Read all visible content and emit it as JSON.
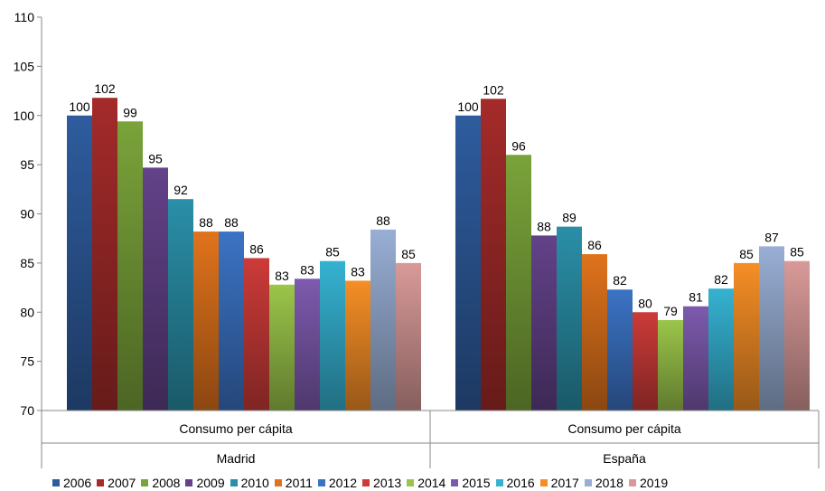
{
  "chart_data": {
    "type": "bar",
    "title": "",
    "xlabel": "",
    "ylabel": "",
    "ylim": [
      70,
      110
    ],
    "yticks": [
      "70",
      "75",
      "80",
      "85",
      "90",
      "95",
      "100",
      "105",
      "110"
    ],
    "grid": false,
    "legend_position": "bottom",
    "groups": [
      {
        "region": "Madrid",
        "category": "Consumo per cápita"
      },
      {
        "region": "España",
        "category": "Consumo per cápita"
      }
    ],
    "series": [
      {
        "name": "2006",
        "color": "#2E5C9E",
        "values": [
          100,
          100
        ],
        "labels": [
          "100",
          "100"
        ]
      },
      {
        "name": "2007",
        "color": "#A42B2A",
        "values": [
          101.8,
          101.7
        ],
        "labels": [
          "102",
          "102"
        ]
      },
      {
        "name": "2008",
        "color": "#7AA33A",
        "values": [
          99.4,
          96.0
        ],
        "labels": [
          "99",
          "96"
        ]
      },
      {
        "name": "2009",
        "color": "#634289",
        "values": [
          94.7,
          87.8
        ],
        "labels": [
          "95",
          "88"
        ]
      },
      {
        "name": "2010",
        "color": "#2A8FA8",
        "values": [
          91.5,
          88.7
        ],
        "labels": [
          "92",
          "89"
        ]
      },
      {
        "name": "2011",
        "color": "#E0731C",
        "values": [
          88.2,
          85.9
        ],
        "labels": [
          "88",
          "86"
        ]
      },
      {
        "name": "2012",
        "color": "#3B73C4",
        "values": [
          88.2,
          82.3
        ],
        "labels": [
          "88",
          "82"
        ]
      },
      {
        "name": "2013",
        "color": "#CC3B38",
        "values": [
          85.5,
          80.0
        ],
        "labels": [
          "86",
          "80"
        ]
      },
      {
        "name": "2014",
        "color": "#9BC54A",
        "values": [
          82.8,
          79.2
        ],
        "labels": [
          "83",
          "79"
        ]
      },
      {
        "name": "2015",
        "color": "#7D5AAE",
        "values": [
          83.4,
          80.6
        ],
        "labels": [
          "83",
          "81"
        ]
      },
      {
        "name": "2016",
        "color": "#35B2D1",
        "values": [
          85.2,
          82.4
        ],
        "labels": [
          "85",
          "82"
        ]
      },
      {
        "name": "2017",
        "color": "#F58E26",
        "values": [
          83.2,
          85.0
        ],
        "labels": [
          "83",
          "85"
        ]
      },
      {
        "name": "2018",
        "color": "#98AED4",
        "values": [
          88.4,
          86.7
        ],
        "labels": [
          "88",
          "87"
        ]
      },
      {
        "name": "2019",
        "color": "#D89A98",
        "values": [
          85.0,
          85.2
        ],
        "labels": [
          "85",
          "85"
        ]
      }
    ]
  }
}
